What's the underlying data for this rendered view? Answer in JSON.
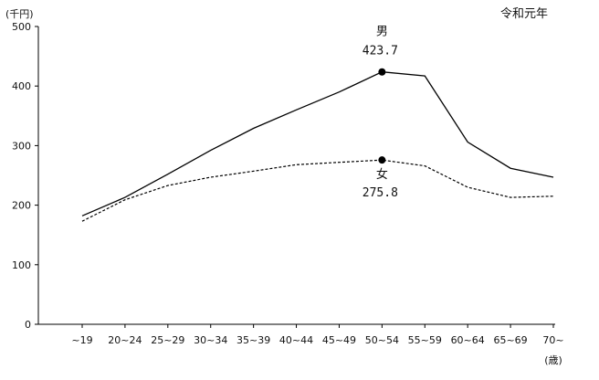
{
  "chart_data": {
    "type": "line",
    "title": "令和元年",
    "y_unit": "(千円)",
    "x_unit": "(歳)",
    "categories": [
      "~19",
      "20~24",
      "25~29",
      "30~34",
      "35~39",
      "40~44",
      "45~49",
      "50~54",
      "55~59",
      "60~64",
      "65~69",
      "70~"
    ],
    "ylim": [
      0,
      500
    ],
    "yticks": [
      0,
      100,
      200,
      300,
      400,
      500
    ],
    "grid": false,
    "series": [
      {
        "name": "男",
        "style": "solid",
        "color": "#000000",
        "values": [
          182,
          213,
          252,
          292,
          329,
          360,
          390,
          423.7,
          417,
          306,
          262,
          247
        ]
      },
      {
        "name": "女",
        "style": "dashed",
        "color": "#000000",
        "values": [
          173,
          209,
          233,
          247,
          257,
          268,
          272,
          275.8,
          266,
          230,
          213,
          215
        ]
      }
    ],
    "annotations": [
      {
        "series": "男",
        "category": "50~54",
        "value_label": "423.7",
        "label_position": "above"
      },
      {
        "series": "女",
        "category": "50~54",
        "value_label": "275.8",
        "label_position": "below"
      }
    ]
  }
}
